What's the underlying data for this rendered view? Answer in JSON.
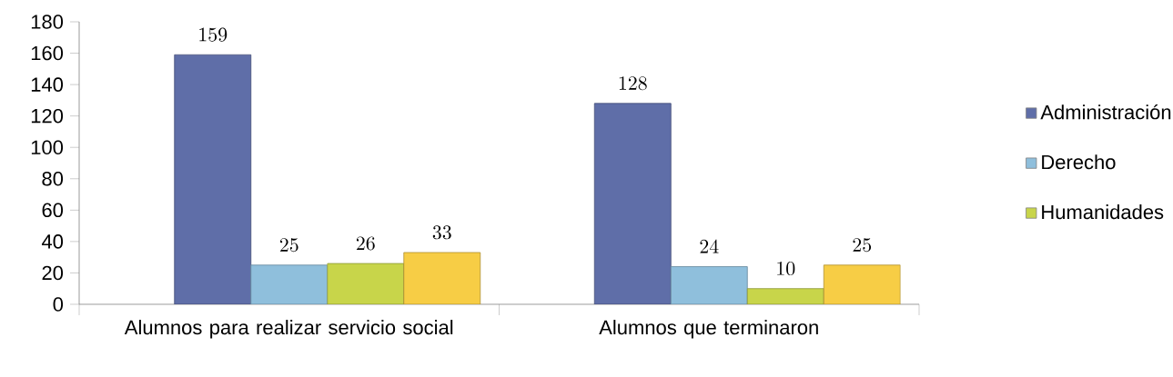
{
  "chart_data": {
    "type": "bar",
    "categories": [
      "Alumnos para realizar servicio social",
      "Alumnos que terminaron"
    ],
    "series": [
      {
        "name": "Administración",
        "color": "#5f6ea8",
        "values": [
          159,
          128
        ]
      },
      {
        "name": "Derecho",
        "color": "#8fbfdc",
        "values": [
          25,
          24
        ]
      },
      {
        "name": "Humanidades",
        "color": "#c8d54a",
        "values": [
          26,
          10
        ]
      },
      {
        "color": "#f7cd45",
        "values": [
          33,
          25
        ]
      }
    ],
    "ylim": [
      0,
      180
    ],
    "yticks": [
      0,
      20,
      40,
      60,
      80,
      100,
      120,
      140,
      160,
      180
    ],
    "data_labels": true,
    "legend": "right",
    "grid": false
  }
}
